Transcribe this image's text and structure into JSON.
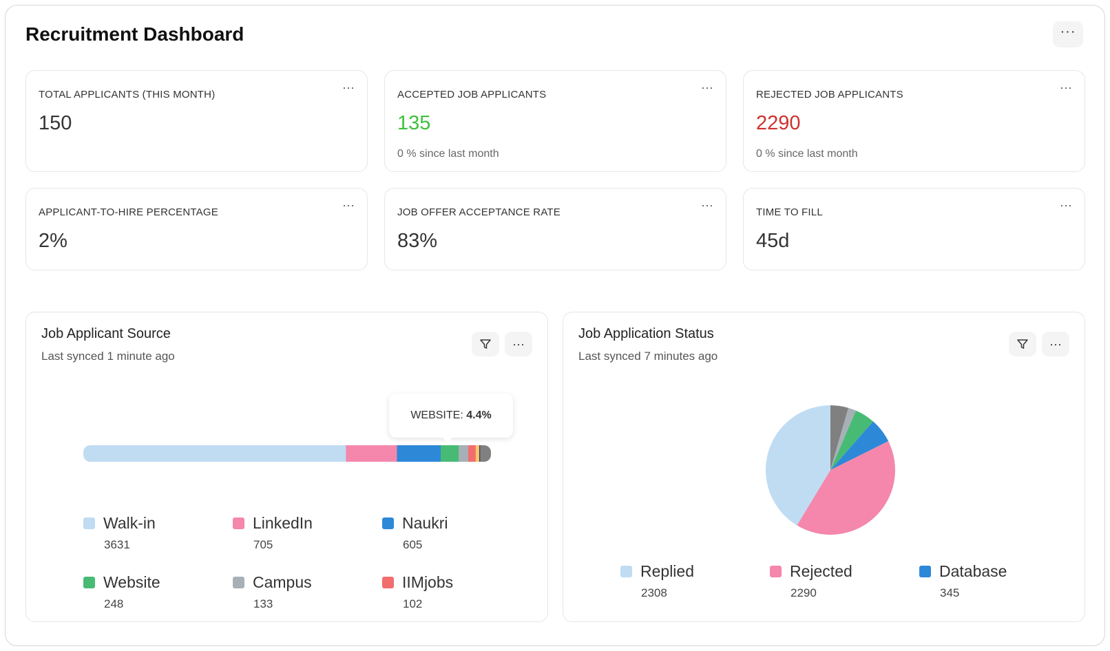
{
  "header": {
    "title": "Recruitment Dashboard",
    "more_label": "···"
  },
  "kpis": [
    {
      "label": "TOTAL APPLICANTS (THIS MONTH)",
      "value": "150",
      "sub": "",
      "color": "#333333"
    },
    {
      "label": "ACCEPTED JOB APPLICANTS",
      "value": "135",
      "sub": "0 % since last month",
      "color": "#3cc13b"
    },
    {
      "label": "REJECTED JOB APPLICANTS",
      "value": "2290",
      "sub": "0 % since last month",
      "color": "#d0312d"
    },
    {
      "label": "APPLICANT-TO-HIRE PERCENTAGE",
      "value": "2%",
      "sub": "",
      "color": "#333333"
    },
    {
      "label": "JOB OFFER ACCEPTANCE RATE",
      "value": "83%",
      "sub": "",
      "color": "#333333"
    },
    {
      "label": "TIME TO FILL",
      "value": "45d",
      "sub": "",
      "color": "#333333"
    }
  ],
  "more": "···",
  "source_panel": {
    "title": "Job Applicant Source",
    "sub": "Last synced 1 minute ago",
    "tooltip_label": "WEBSITE:",
    "tooltip_value": "4.4%",
    "legend": [
      {
        "name": "Walk-in",
        "value": "3631",
        "color": "#bfdcf3"
      },
      {
        "name": "LinkedIn",
        "value": "705",
        "color": "#f487ab"
      },
      {
        "name": "Naukri",
        "value": "605",
        "color": "#2e88d8"
      },
      {
        "name": "Website",
        "value": "248",
        "color": "#47bb74"
      },
      {
        "name": "Campus",
        "value": "133",
        "color": "#a7b0b7"
      },
      {
        "name": "IIMjobs",
        "value": "102",
        "color": "#f26d6d"
      }
    ]
  },
  "status_panel": {
    "title": "Job Application Status",
    "sub": "Last synced 7 minutes ago",
    "legend": [
      {
        "name": "Replied",
        "value": "2308",
        "color": "#bfdcf3"
      },
      {
        "name": "Rejected",
        "value": "2290",
        "color": "#f487ab"
      },
      {
        "name": "Database",
        "value": "345",
        "color": "#2e88d8"
      }
    ]
  },
  "chart_data": [
    {
      "type": "bar",
      "orientation": "stacked-horizontal",
      "series": [
        {
          "name": "Walk-in",
          "value": 3631,
          "color": "#bfdcf3"
        },
        {
          "name": "LinkedIn",
          "value": 705,
          "color": "#f487ab"
        },
        {
          "name": "Naukri",
          "value": 605,
          "color": "#2e88d8"
        },
        {
          "name": "Website",
          "value": 248,
          "color": "#47bb74"
        },
        {
          "name": "Campus",
          "value": 133,
          "color": "#a7b0b7"
        },
        {
          "name": "IIMjobs",
          "value": 102,
          "color": "#f26d6d"
        },
        {
          "value": 50,
          "color": "#fbc56b"
        },
        {
          "value": 12,
          "color": "#2f3a6b"
        },
        {
          "value": 150,
          "color": "#808080"
        }
      ]
    },
    {
      "type": "pie",
      "slices": [
        {
          "value": 250,
          "color": "#808080"
        },
        {
          "value": 110,
          "color": "#a7b0b7"
        },
        {
          "value": 280,
          "color": "#47bb74"
        },
        {
          "name": "Database",
          "value": 345,
          "color": "#2e88d8"
        },
        {
          "name": "Rejected",
          "value": 2290,
          "color": "#f487ab"
        },
        {
          "name": "Replied",
          "value": 2308,
          "color": "#bfdcf3"
        }
      ]
    }
  ]
}
